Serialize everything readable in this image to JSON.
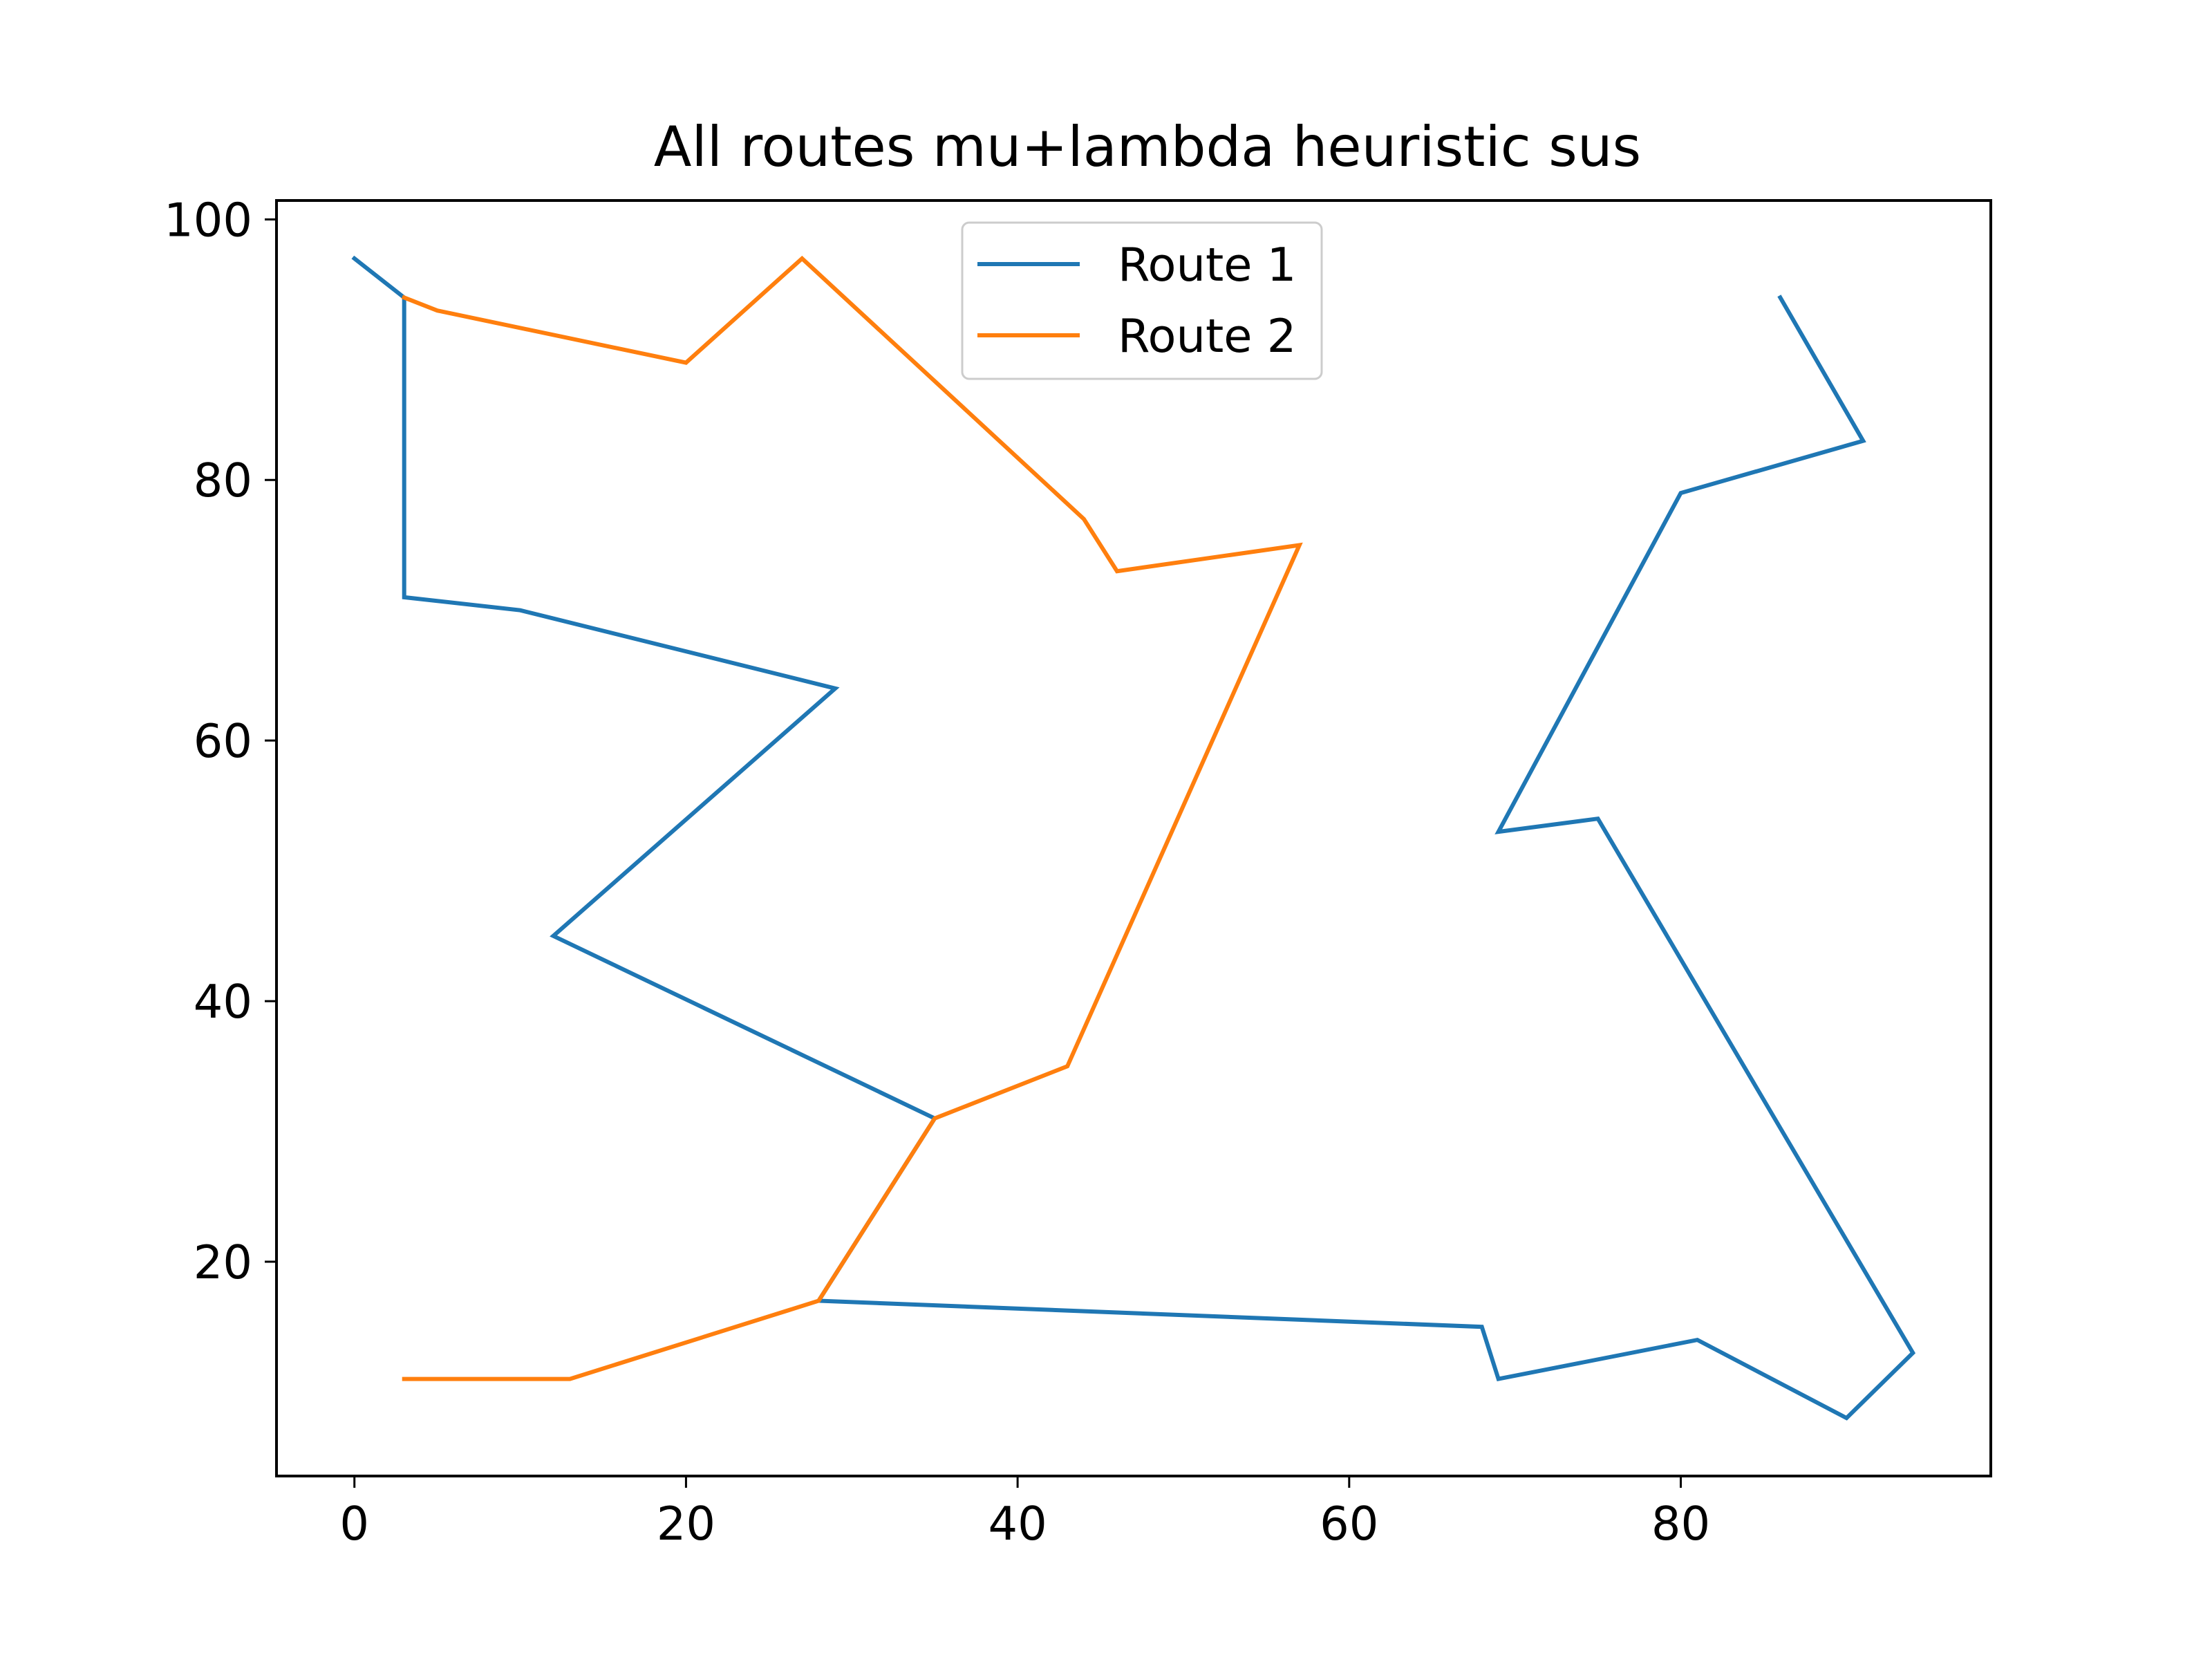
{
  "chart_data": {
    "type": "line",
    "title": "All routes mu+lambda heuristic sus",
    "xlabel": "",
    "ylabel": "",
    "xlim": [
      -4.7,
      98.7
    ],
    "ylim": [
      3.55,
      101.45
    ],
    "xticks": [
      0,
      20,
      40,
      60,
      80
    ],
    "yticks": [
      20,
      40,
      60,
      80,
      100
    ],
    "grid": false,
    "legend_position": "upper center",
    "series": [
      {
        "name": "Route 1",
        "color": "#1f77b4",
        "points": [
          [
            0,
            97
          ],
          [
            3,
            94
          ],
          [
            3,
            71
          ],
          [
            10,
            70
          ],
          [
            29,
            64
          ],
          [
            12,
            45
          ],
          [
            35,
            31
          ],
          [
            28,
            17
          ],
          [
            68,
            15
          ],
          [
            69,
            11
          ],
          [
            81,
            14
          ],
          [
            90,
            8
          ],
          [
            94,
            13
          ],
          [
            75,
            54
          ],
          [
            69,
            53
          ],
          [
            80,
            79
          ],
          [
            91,
            83
          ],
          [
            86,
            94
          ]
        ]
      },
      {
        "name": "Route 2",
        "color": "#ff7f0e",
        "points": [
          [
            3,
            11
          ],
          [
            13,
            11
          ],
          [
            28,
            17
          ],
          [
            35,
            31
          ],
          [
            43,
            35
          ],
          [
            57,
            75
          ],
          [
            46,
            73
          ],
          [
            44,
            77
          ],
          [
            27,
            97
          ],
          [
            20,
            89
          ],
          [
            5,
            93
          ],
          [
            3,
            94
          ]
        ]
      }
    ]
  }
}
